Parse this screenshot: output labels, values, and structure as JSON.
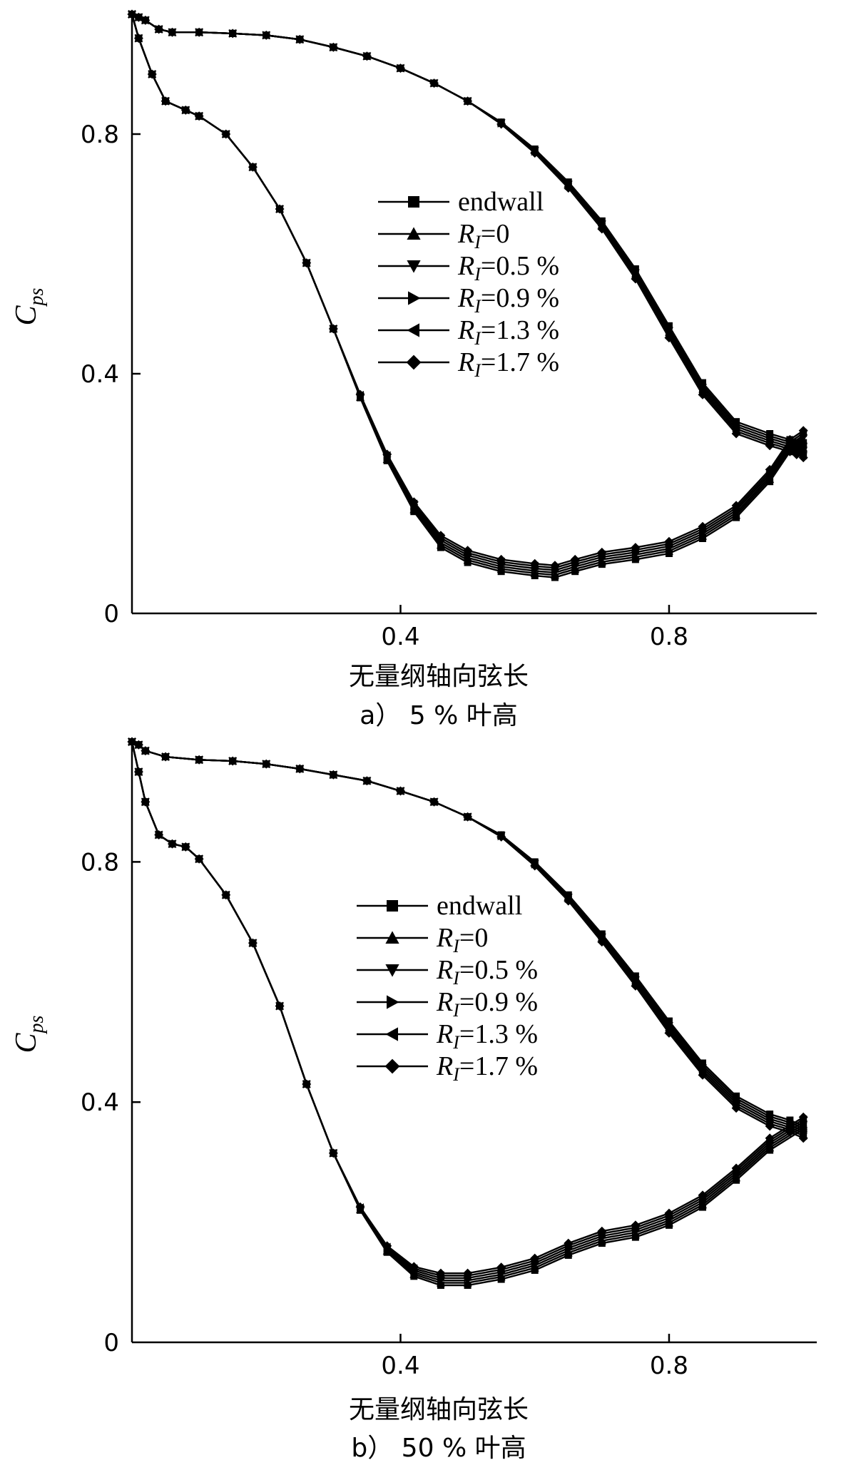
{
  "chart_data": [
    {
      "type": "line",
      "caption": "a） 5 % 叶高",
      "xlabel": "无量纲轴向弦长",
      "ylabel_main": "C",
      "ylabel_sub": "ps",
      "xlim": [
        0,
        1.02
      ],
      "ylim": [
        0,
        1.0
      ],
      "xticks": [
        {
          "value": 0.4,
          "label": "0.4"
        },
        {
          "value": 0.8,
          "label": "0.8"
        }
      ],
      "yticks": [
        {
          "value": 0,
          "label": "0"
        },
        {
          "value": 0.4,
          "label": "0.4"
        },
        {
          "value": 0.8,
          "label": "0.8"
        }
      ],
      "legend_position": "center",
      "series": [
        {
          "name": "endwall",
          "marker": "square",
          "upper_offset": 0.0,
          "lower_offset": 0.0
        },
        {
          "name": "R_I=0",
          "label_main": "R",
          "label_sub": "I",
          "label_rest": "=0",
          "marker": "triangle-up",
          "upper_offset": 0.004,
          "lower_offset": 0.008
        },
        {
          "name": "R_I=0.5 %",
          "label_main": "R",
          "label_sub": "I",
          "label_rest": "=0.5 %",
          "marker": "triangle-down",
          "upper_offset": 0.008,
          "lower_offset": 0.016
        },
        {
          "name": "R_I=0.9 %",
          "label_main": "R",
          "label_sub": "I",
          "label_rest": "=0.9 %",
          "marker": "triangle-right",
          "upper_offset": 0.012,
          "lower_offset": 0.024
        },
        {
          "name": "R_I=1.3 %",
          "label_main": "R",
          "label_sub": "I",
          "label_rest": "=1.3 %",
          "marker": "triangle-left",
          "upper_offset": 0.016,
          "lower_offset": 0.032
        },
        {
          "name": "R_I=1.7 %",
          "label_main": "R",
          "label_sub": "I",
          "label_rest": "=1.7 %",
          "marker": "diamond",
          "upper_offset": 0.02,
          "lower_offset": 0.04
        }
      ],
      "upper_surface": [
        [
          0.0,
          1.0
        ],
        [
          0.01,
          0.995
        ],
        [
          0.02,
          0.99
        ],
        [
          0.04,
          0.975
        ],
        [
          0.06,
          0.97
        ],
        [
          0.1,
          0.97
        ],
        [
          0.15,
          0.968
        ],
        [
          0.2,
          0.965
        ],
        [
          0.25,
          0.958
        ],
        [
          0.3,
          0.945
        ],
        [
          0.35,
          0.93
        ],
        [
          0.4,
          0.91
        ],
        [
          0.45,
          0.885
        ],
        [
          0.5,
          0.855
        ],
        [
          0.55,
          0.82
        ],
        [
          0.6,
          0.775
        ],
        [
          0.65,
          0.72
        ],
        [
          0.7,
          0.655
        ],
        [
          0.75,
          0.575
        ],
        [
          0.8,
          0.48
        ],
        [
          0.85,
          0.385
        ],
        [
          0.9,
          0.32
        ],
        [
          0.95,
          0.3
        ],
        [
          0.98,
          0.29
        ],
        [
          0.99,
          0.285
        ],
        [
          1.0,
          0.28
        ]
      ],
      "lower_surface": [
        [
          0.0,
          1.0
        ],
        [
          0.01,
          0.96
        ],
        [
          0.03,
          0.9
        ],
        [
          0.05,
          0.855
        ],
        [
          0.08,
          0.84
        ],
        [
          0.1,
          0.83
        ],
        [
          0.14,
          0.8
        ],
        [
          0.18,
          0.745
        ],
        [
          0.22,
          0.675
        ],
        [
          0.26,
          0.585
        ],
        [
          0.3,
          0.475
        ],
        [
          0.34,
          0.36
        ],
        [
          0.38,
          0.255
        ],
        [
          0.42,
          0.17
        ],
        [
          0.46,
          0.11
        ],
        [
          0.5,
          0.085
        ],
        [
          0.55,
          0.07
        ],
        [
          0.6,
          0.063
        ],
        [
          0.63,
          0.06
        ],
        [
          0.66,
          0.07
        ],
        [
          0.7,
          0.082
        ],
        [
          0.75,
          0.09
        ],
        [
          0.8,
          0.1
        ],
        [
          0.85,
          0.125
        ],
        [
          0.9,
          0.16
        ],
        [
          0.95,
          0.22
        ],
        [
          0.98,
          0.27
        ],
        [
          1.0,
          0.285
        ]
      ]
    },
    {
      "type": "line",
      "caption": "b） 50 % 叶高",
      "xlabel": "无量纲轴向弦长",
      "ylabel_main": "C",
      "ylabel_sub": "ps",
      "xlim": [
        0,
        1.02
      ],
      "ylim": [
        0,
        1.0
      ],
      "xticks": [
        {
          "value": 0.4,
          "label": "0.4"
        },
        {
          "value": 0.8,
          "label": "0.8"
        }
      ],
      "yticks": [
        {
          "value": 0,
          "label": "0"
        },
        {
          "value": 0.4,
          "label": "0.4"
        },
        {
          "value": 0.8,
          "label": "0.8"
        }
      ],
      "legend_position": "center-right",
      "series": [
        {
          "name": "endwall",
          "marker": "square",
          "upper_offset": 0.0,
          "lower_offset": 0.0
        },
        {
          "name": "R_I=0",
          "label_main": "R",
          "label_sub": "I",
          "label_rest": "=0",
          "marker": "triangle-up",
          "upper_offset": 0.004,
          "lower_offset": 0.008
        },
        {
          "name": "R_I=0.5 %",
          "label_main": "R",
          "label_sub": "I",
          "label_rest": "=0.5 %",
          "marker": "triangle-down",
          "upper_offset": 0.008,
          "lower_offset": 0.016
        },
        {
          "name": "R_I=0.9 %",
          "label_main": "R",
          "label_sub": "I",
          "label_rest": "=0.9 %",
          "marker": "triangle-right",
          "upper_offset": 0.012,
          "lower_offset": 0.024
        },
        {
          "name": "R_I=1.3 %",
          "label_main": "R",
          "label_sub": "I",
          "label_rest": "=1.3 %",
          "marker": "triangle-left",
          "upper_offset": 0.016,
          "lower_offset": 0.032
        },
        {
          "name": "R_I=1.7 %",
          "label_main": "R",
          "label_sub": "I",
          "label_rest": "=1.7 %",
          "marker": "diamond",
          "upper_offset": 0.02,
          "lower_offset": 0.04
        }
      ],
      "upper_surface": [
        [
          0.0,
          1.0
        ],
        [
          0.01,
          0.995
        ],
        [
          0.02,
          0.985
        ],
        [
          0.05,
          0.975
        ],
        [
          0.1,
          0.97
        ],
        [
          0.15,
          0.968
        ],
        [
          0.2,
          0.963
        ],
        [
          0.25,
          0.955
        ],
        [
          0.3,
          0.945
        ],
        [
          0.35,
          0.935
        ],
        [
          0.4,
          0.918
        ],
        [
          0.45,
          0.9
        ],
        [
          0.5,
          0.875
        ],
        [
          0.55,
          0.845
        ],
        [
          0.6,
          0.8
        ],
        [
          0.65,
          0.745
        ],
        [
          0.7,
          0.68
        ],
        [
          0.75,
          0.61
        ],
        [
          0.8,
          0.535
        ],
        [
          0.85,
          0.465
        ],
        [
          0.9,
          0.41
        ],
        [
          0.95,
          0.38
        ],
        [
          0.98,
          0.37
        ],
        [
          1.0,
          0.36
        ]
      ],
      "lower_surface": [
        [
          0.0,
          1.0
        ],
        [
          0.01,
          0.95
        ],
        [
          0.02,
          0.9
        ],
        [
          0.04,
          0.845
        ],
        [
          0.06,
          0.83
        ],
        [
          0.08,
          0.825
        ],
        [
          0.1,
          0.805
        ],
        [
          0.14,
          0.745
        ],
        [
          0.18,
          0.665
        ],
        [
          0.22,
          0.56
        ],
        [
          0.26,
          0.43
        ],
        [
          0.3,
          0.315
        ],
        [
          0.34,
          0.22
        ],
        [
          0.38,
          0.15
        ],
        [
          0.42,
          0.11
        ],
        [
          0.46,
          0.095
        ],
        [
          0.5,
          0.095
        ],
        [
          0.55,
          0.105
        ],
        [
          0.6,
          0.12
        ],
        [
          0.65,
          0.145
        ],
        [
          0.7,
          0.165
        ],
        [
          0.75,
          0.175
        ],
        [
          0.8,
          0.195
        ],
        [
          0.85,
          0.225
        ],
        [
          0.9,
          0.27
        ],
        [
          0.95,
          0.32
        ],
        [
          1.0,
          0.355
        ]
      ]
    }
  ]
}
